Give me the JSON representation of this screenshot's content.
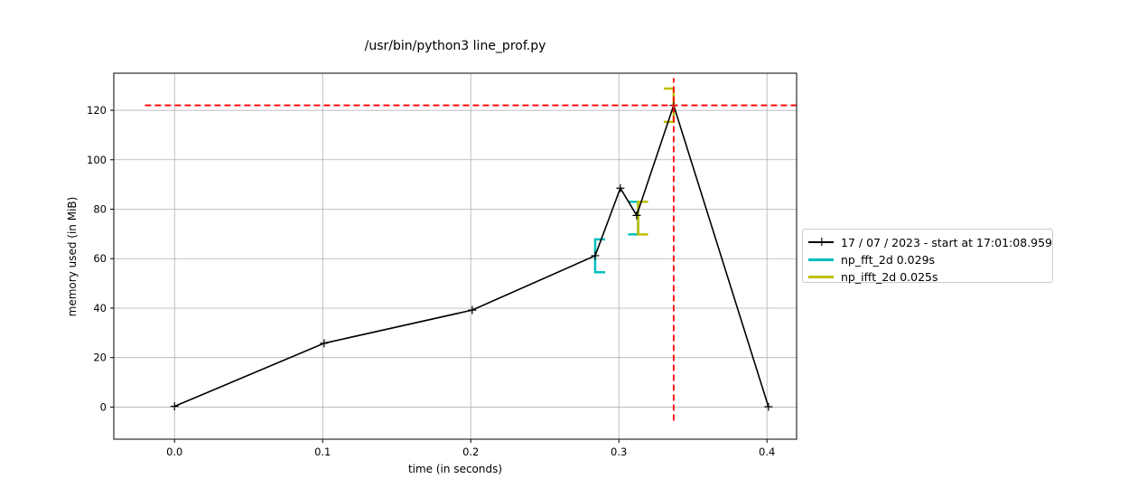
{
  "chart_data": {
    "type": "line",
    "title": "/usr/bin/python3 line_prof.py",
    "xlabel": "time (in seconds)",
    "ylabel": "memory used (in MiB)",
    "xlim": [
      -0.041,
      0.42
    ],
    "ylim": [
      -13,
      135
    ],
    "x_ticks": [
      "0.0",
      "0.1",
      "0.2",
      "0.3",
      "0.4"
    ],
    "x_tick_values": [
      0.0,
      0.1,
      0.2,
      0.3,
      0.4
    ],
    "y_ticks": [
      "0",
      "20",
      "40",
      "60",
      "80",
      "100",
      "120"
    ],
    "y_tick_values": [
      0,
      20,
      40,
      60,
      80,
      100,
      120
    ],
    "grid": true,
    "legend_position": "right, outside plot",
    "series": [
      {
        "name": "17 / 07 / 2023 - start at 17:01:08.959",
        "color": "#000000",
        "marker": "+",
        "x": [
          0.0,
          0.101,
          0.201,
          0.284,
          0.301,
          0.312,
          0.337,
          0.401
        ],
        "y": [
          0.3,
          25.8,
          39.2,
          61.2,
          88.5,
          77.5,
          122.0,
          0.1
        ]
      }
    ],
    "brackets": [
      {
        "name": "np_fft_2d 0.029s",
        "color": "#00bfbf",
        "start": {
          "x": 0.284,
          "y_low": 54.5,
          "y_high": 67.8
        },
        "end": {
          "x": 0.313,
          "y_low": 69.8,
          "y_high": 83.0
        }
      },
      {
        "name": "np_ifft_2d 0.025s",
        "color": "#bfbf00",
        "start": {
          "x": 0.313,
          "y_low": 69.8,
          "y_high": 83.0
        },
        "end": {
          "x": 0.337,
          "y_low": 115.3,
          "y_high": 128.8
        }
      }
    ],
    "peak_lines": {
      "color": "#ff0000",
      "y": 122.0,
      "x_from": -0.02,
      "x_to": 0.42,
      "x": 0.337,
      "y_from": -5.5,
      "y_to": 133
    }
  }
}
